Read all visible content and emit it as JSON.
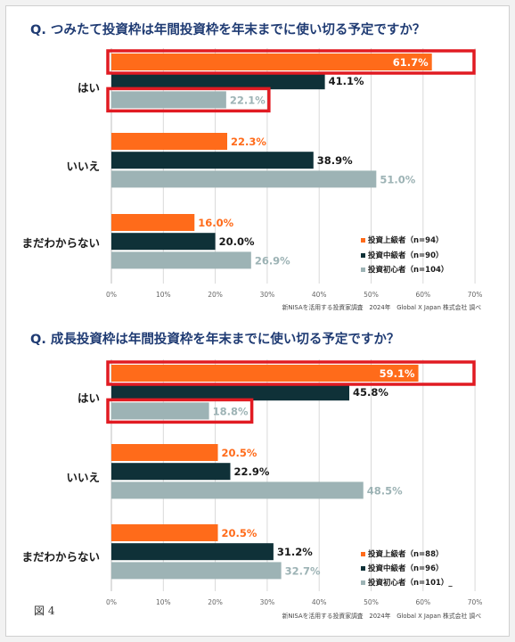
{
  "figure_label": "図 4",
  "colors": {
    "advanced": "#ff6b1a",
    "intermediate": "#0f3138",
    "beginner": "#9db3b5",
    "highlight": "#e11b22",
    "title": "#1f3b73"
  },
  "chart_data": [
    {
      "type": "bar",
      "orientation": "horizontal",
      "title": "Q. つみたて投資枠は年間投資枠を年末までに使い切る予定ですか？",
      "categories": [
        "はい",
        "いいえ",
        "まだわからない"
      ],
      "series": [
        {
          "name": "投資上級者（n=94）",
          "values": [
            61.7,
            22.3,
            16.0
          ]
        },
        {
          "name": "投資中級者（n=90）",
          "values": [
            41.1,
            38.9,
            20.0
          ]
        },
        {
          "name": "投資初心者（n=104）",
          "values": [
            22.1,
            51.0,
            26.9
          ]
        }
      ],
      "value_labels": [
        [
          "61.7%",
          "22.3%",
          "16.0%"
        ],
        [
          "41.1%",
          "38.9%",
          "20.0%"
        ],
        [
          "22.1%",
          "51.0%",
          "26.9%"
        ]
      ],
      "xlim": [
        0,
        70
      ],
      "xticks": [
        "0%",
        "10%",
        "20%",
        "30%",
        "40%",
        "50%",
        "60%",
        "70%"
      ],
      "grid": true,
      "legend_position": "bottom-right",
      "source": "新NISAを活用する投資家調査　2024年　Global X Japan 株式会社 調べ",
      "highlighted_bars": [
        [
          0,
          0
        ],
        [
          2,
          0
        ]
      ]
    },
    {
      "type": "bar",
      "orientation": "horizontal",
      "title": "Q. 成長投資枠は年間投資枠を年末までに使い切る予定ですか？",
      "categories": [
        "はい",
        "いいえ",
        "まだわからない"
      ],
      "series": [
        {
          "name": "投資上級者（n=88）",
          "values": [
            59.1,
            20.5,
            20.5
          ]
        },
        {
          "name": "投資中級者（n=96）",
          "values": [
            45.8,
            22.9,
            31.2
          ]
        },
        {
          "name": "投資初心者（n=101）_",
          "values": [
            18.8,
            48.5,
            32.7
          ]
        }
      ],
      "value_labels": [
        [
          "59.1%",
          "20.5%",
          "20.5%"
        ],
        [
          "45.8%",
          "22.9%",
          "31.2%"
        ],
        [
          "18.8%",
          "48.5%",
          "32.7%"
        ]
      ],
      "xlim": [
        0,
        70
      ],
      "xticks": [
        "0%",
        "10%",
        "20%",
        "30%",
        "40%",
        "50%",
        "60%",
        "70%"
      ],
      "grid": true,
      "legend_position": "bottom-right",
      "source": "新NISAを活用する投資家調査　2024年　Global X Japan 株式会社 調べ",
      "highlighted_bars": [
        [
          0,
          0
        ],
        [
          2,
          0
        ]
      ]
    }
  ]
}
